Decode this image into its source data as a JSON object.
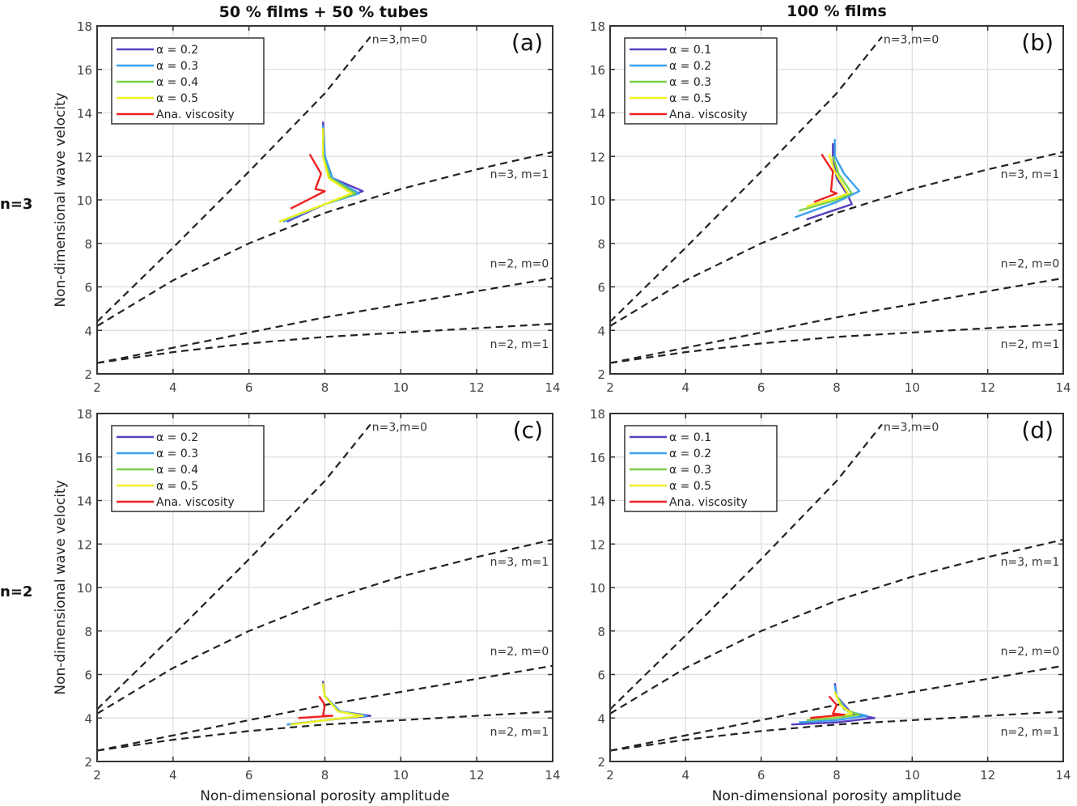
{
  "column_titles": [
    "50 % films + 50 % tubes",
    "100 % films"
  ],
  "row_labels": [
    "n=3",
    "n=2"
  ],
  "chart_data": [
    {
      "type": "line",
      "panel": "(a)",
      "xlabel": "",
      "ylabel": "Non-dimensional wave velocity",
      "xlim": [
        2,
        14
      ],
      "ylim": [
        2,
        18
      ],
      "xticks": [
        2,
        4,
        6,
        8,
        10,
        12,
        14
      ],
      "yticks": [
        2,
        4,
        6,
        8,
        10,
        12,
        14,
        16,
        18
      ],
      "grid": true,
      "legend": {
        "placement": "top-left",
        "entries": [
          {
            "label": "α = 0.2",
            "color": "#5a3fc0"
          },
          {
            "label": "α = 0.3",
            "color": "#3aa0f0"
          },
          {
            "label": "α = 0.4",
            "color": "#7cd04a"
          },
          {
            "label": "α = 0.5",
            "color": "#f0f020"
          },
          {
            "label": "Ana. viscosity",
            "color": "#f02020"
          }
        ]
      },
      "dispersion_curves": [
        {
          "label": "n=3,m=0",
          "x": [
            2,
            4,
            6,
            8,
            9.2
          ],
          "y": [
            4.4,
            7.8,
            11.3,
            14.9,
            17.5
          ]
        },
        {
          "label": "n=3, m=1",
          "x": [
            2,
            4,
            6,
            8,
            10,
            12,
            14
          ],
          "y": [
            4.2,
            6.3,
            8.0,
            9.4,
            10.5,
            11.4,
            12.2
          ]
        },
        {
          "label": "n=2, m=0",
          "x": [
            2,
            4,
            6,
            8,
            10,
            12,
            14
          ],
          "y": [
            2.5,
            3.2,
            3.9,
            4.6,
            5.2,
            5.8,
            6.4
          ]
        },
        {
          "label": "n=2, m=1",
          "x": [
            2,
            4,
            6,
            8,
            10,
            12,
            14
          ],
          "y": [
            2.5,
            3.0,
            3.4,
            3.7,
            3.9,
            4.1,
            4.3
          ]
        }
      ],
      "series": [
        {
          "name": "α = 0.2",
          "color": "#5a3fc0",
          "x": [
            7.0,
            8.0,
            9.0,
            8.2,
            8.0,
            7.95
          ],
          "y": [
            9.0,
            9.8,
            10.4,
            11.0,
            12.0,
            13.6
          ]
        },
        {
          "name": "α = 0.3",
          "color": "#3aa0f0",
          "x": [
            6.9,
            8.0,
            8.9,
            8.2,
            8.0,
            7.95
          ],
          "y": [
            9.0,
            9.8,
            10.3,
            11.0,
            12.0,
            13.4
          ]
        },
        {
          "name": "α = 0.4",
          "color": "#7cd04a",
          "x": [
            6.8,
            8.0,
            8.8,
            8.15,
            7.95,
            7.95
          ],
          "y": [
            9.0,
            9.8,
            10.3,
            11.0,
            12.0,
            13.3
          ]
        },
        {
          "name": "α = 0.5",
          "color": "#f0f020",
          "x": [
            6.8,
            8.0,
            8.7,
            8.1,
            7.95,
            7.95
          ],
          "y": [
            9.0,
            9.8,
            10.3,
            11.0,
            12.0,
            13.3
          ]
        },
        {
          "name": "Ana. viscosity",
          "color": "#f02020",
          "x": [
            7.1,
            8.0,
            7.75,
            7.9,
            7.6
          ],
          "y": [
            9.6,
            10.4,
            10.5,
            11.2,
            12.1
          ]
        }
      ]
    },
    {
      "type": "line",
      "panel": "(b)",
      "xlabel": "",
      "ylabel": "",
      "xlim": [
        2,
        14
      ],
      "ylim": [
        2,
        18
      ],
      "xticks": [
        2,
        4,
        6,
        8,
        10,
        12,
        14
      ],
      "yticks": [
        2,
        4,
        6,
        8,
        10,
        12,
        14,
        16,
        18
      ],
      "grid": true,
      "legend": {
        "placement": "top-left",
        "entries": [
          {
            "label": "α = 0.1",
            "color": "#5a3fc0"
          },
          {
            "label": "α = 0.2",
            "color": "#3aa0f0"
          },
          {
            "label": "α = 0.3",
            "color": "#7cd04a"
          },
          {
            "label": "α = 0.5",
            "color": "#f0f020"
          },
          {
            "label": "Ana. viscosity",
            "color": "#f02020"
          }
        ]
      },
      "dispersion_curves": [
        {
          "label": "n=3,m=0",
          "x": [
            2,
            4,
            6,
            8,
            9.2
          ],
          "y": [
            4.4,
            7.8,
            11.3,
            14.9,
            17.5
          ]
        },
        {
          "label": "n=3, m=1",
          "x": [
            2,
            4,
            6,
            8,
            10,
            12,
            14
          ],
          "y": [
            4.2,
            6.3,
            8.0,
            9.4,
            10.5,
            11.4,
            12.2
          ]
        },
        {
          "label": "n=2, m=0",
          "x": [
            2,
            4,
            6,
            8,
            10,
            12,
            14
          ],
          "y": [
            2.5,
            3.2,
            3.9,
            4.6,
            5.2,
            5.8,
            6.4
          ]
        },
        {
          "label": "n=2, m=1",
          "x": [
            2,
            4,
            6,
            8,
            10,
            12,
            14
          ],
          "y": [
            2.5,
            3.0,
            3.4,
            3.7,
            3.9,
            4.1,
            4.3
          ]
        }
      ],
      "series": [
        {
          "name": "α = 0.1",
          "color": "#5a3fc0",
          "x": [
            7.2,
            8.4,
            8.3,
            8.0,
            7.9,
            7.9
          ],
          "y": [
            9.1,
            9.8,
            10.2,
            11.0,
            12.0,
            12.6
          ]
        },
        {
          "name": "α = 0.2",
          "color": "#3aa0f0",
          "x": [
            6.9,
            8.0,
            8.6,
            8.2,
            7.95,
            7.95
          ],
          "y": [
            9.2,
            9.9,
            10.4,
            11.2,
            12.0,
            12.8
          ]
        },
        {
          "name": "α = 0.3",
          "color": "#7cd04a",
          "x": [
            7.0,
            8.0,
            8.4,
            8.05,
            7.9
          ],
          "y": [
            9.5,
            10.0,
            10.3,
            11.2,
            12.0
          ]
        },
        {
          "name": "α = 0.5",
          "color": "#f0f020",
          "x": [
            7.2,
            8.0,
            8.3,
            7.95,
            7.8
          ],
          "y": [
            9.7,
            10.1,
            10.3,
            11.3,
            12.1
          ]
        },
        {
          "name": "Ana. viscosity",
          "color": "#f02020",
          "x": [
            7.4,
            8.0,
            7.85,
            7.9,
            7.6
          ],
          "y": [
            9.9,
            10.3,
            10.4,
            11.3,
            12.1
          ]
        }
      ]
    },
    {
      "type": "line",
      "panel": "(c)",
      "xlabel": "Non-dimensional porosity amplitude",
      "ylabel": "Non-dimensional wave velocity",
      "xlim": [
        2,
        14
      ],
      "ylim": [
        2,
        18
      ],
      "xticks": [
        2,
        4,
        6,
        8,
        10,
        12,
        14
      ],
      "yticks": [
        2,
        4,
        6,
        8,
        10,
        12,
        14,
        16,
        18
      ],
      "grid": true,
      "legend": {
        "placement": "top-left",
        "entries": [
          {
            "label": "α = 0.2",
            "color": "#5a3fc0"
          },
          {
            "label": "α = 0.3",
            "color": "#3aa0f0"
          },
          {
            "label": "α = 0.4",
            "color": "#7cd04a"
          },
          {
            "label": "α = 0.5",
            "color": "#f0f020"
          },
          {
            "label": "Ana. viscosity",
            "color": "#f02020"
          }
        ]
      },
      "dispersion_curves": [
        {
          "label": "n=3,m=0",
          "x": [
            2,
            4,
            6,
            8,
            9.2
          ],
          "y": [
            4.4,
            7.8,
            11.3,
            14.9,
            17.5
          ]
        },
        {
          "label": "n=3, m=1",
          "x": [
            2,
            4,
            6,
            8,
            10,
            12,
            14
          ],
          "y": [
            4.2,
            6.3,
            8.0,
            9.4,
            10.5,
            11.4,
            12.2
          ]
        },
        {
          "label": "n=2, m=0",
          "x": [
            2,
            4,
            6,
            8,
            10,
            12,
            14
          ],
          "y": [
            2.5,
            3.2,
            3.9,
            4.6,
            5.2,
            5.8,
            6.4
          ]
        },
        {
          "label": "n=2, m=1",
          "x": [
            2,
            4,
            6,
            8,
            10,
            12,
            14
          ],
          "y": [
            2.5,
            3.0,
            3.4,
            3.7,
            3.9,
            4.1,
            4.3
          ]
        }
      ],
      "series": [
        {
          "name": "α = 0.2",
          "color": "#5a3fc0",
          "x": [
            7.0,
            8.0,
            9.2,
            8.4,
            8.0,
            7.95
          ],
          "y": [
            3.7,
            3.9,
            4.1,
            4.3,
            5.0,
            5.7
          ]
        },
        {
          "name": "α = 0.3",
          "color": "#3aa0f0",
          "x": [
            7.0,
            8.0,
            9.1,
            8.4,
            8.0,
            7.95
          ],
          "y": [
            3.7,
            3.9,
            4.1,
            4.3,
            5.0,
            5.6
          ]
        },
        {
          "name": "α = 0.4",
          "color": "#7cd04a",
          "x": [
            7.1,
            8.0,
            9.0,
            8.35,
            8.0,
            7.95
          ],
          "y": [
            3.7,
            3.9,
            4.1,
            4.3,
            5.0,
            5.6
          ]
        },
        {
          "name": "α = 0.5",
          "color": "#f0f020",
          "x": [
            7.1,
            8.0,
            9.0,
            8.35,
            8.0,
            7.95
          ],
          "y": [
            3.7,
            3.9,
            4.1,
            4.3,
            5.0,
            5.6
          ]
        },
        {
          "name": "Ana. viscosity",
          "color": "#f02020",
          "x": [
            7.3,
            8.2,
            7.95,
            8.0,
            7.85
          ],
          "y": [
            4.0,
            4.1,
            4.1,
            4.6,
            5.0
          ]
        }
      ]
    },
    {
      "type": "line",
      "panel": "(d)",
      "xlabel": "Non-dimensional porosity amplitude",
      "ylabel": "",
      "xlim": [
        2,
        14
      ],
      "ylim": [
        2,
        18
      ],
      "xticks": [
        2,
        4,
        6,
        8,
        10,
        12,
        14
      ],
      "yticks": [
        2,
        4,
        6,
        8,
        10,
        12,
        14,
        16,
        18
      ],
      "grid": true,
      "legend": {
        "placement": "top-left",
        "entries": [
          {
            "label": "α = 0.1",
            "color": "#5a3fc0"
          },
          {
            "label": "α = 0.2",
            "color": "#3aa0f0"
          },
          {
            "label": "α = 0.3",
            "color": "#7cd04a"
          },
          {
            "label": "α = 0.5",
            "color": "#f0f020"
          },
          {
            "label": "Ana. viscosity",
            "color": "#f02020"
          }
        ]
      },
      "dispersion_curves": [
        {
          "label": "n=3,m=0",
          "x": [
            2,
            4,
            6,
            8,
            9.2
          ],
          "y": [
            4.4,
            7.8,
            11.3,
            14.9,
            17.5
          ]
        },
        {
          "label": "n=3, m=1",
          "x": [
            2,
            4,
            6,
            8,
            10,
            12,
            14
          ],
          "y": [
            4.2,
            6.3,
            8.0,
            9.4,
            10.5,
            11.4,
            12.2
          ]
        },
        {
          "label": "n=2, m=0",
          "x": [
            2,
            4,
            6,
            8,
            10,
            12,
            14
          ],
          "y": [
            2.5,
            3.2,
            3.9,
            4.6,
            5.2,
            5.8,
            6.4
          ]
        },
        {
          "label": "n=2, m=1",
          "x": [
            2,
            4,
            6,
            8,
            10,
            12,
            14
          ],
          "y": [
            2.5,
            3.0,
            3.4,
            3.7,
            3.9,
            4.1,
            4.3
          ]
        }
      ],
      "series": [
        {
          "name": "α = 0.1",
          "color": "#5a3fc0",
          "x": [
            6.8,
            8.0,
            9.0,
            8.4,
            8.0,
            7.95
          ],
          "y": [
            3.7,
            3.8,
            4.0,
            4.2,
            5.0,
            5.6
          ]
        },
        {
          "name": "α = 0.2",
          "color": "#3aa0f0",
          "x": [
            7.0,
            8.0,
            8.8,
            8.3,
            8.0,
            7.95
          ],
          "y": [
            3.8,
            3.9,
            4.1,
            4.3,
            5.0,
            5.5
          ]
        },
        {
          "name": "α = 0.3",
          "color": "#7cd04a",
          "x": [
            7.2,
            8.0,
            8.6,
            8.2,
            8.0
          ],
          "y": [
            3.9,
            4.0,
            4.15,
            4.4,
            5.0
          ]
        },
        {
          "name": "α = 0.5",
          "color": "#f0f020",
          "x": [
            7.3,
            8.0,
            8.4,
            8.1,
            7.95
          ],
          "y": [
            4.0,
            4.1,
            4.2,
            4.6,
            5.2
          ]
        },
        {
          "name": "Ana. viscosity",
          "color": "#f02020",
          "x": [
            7.3,
            8.2,
            7.9,
            8.0,
            7.8
          ],
          "y": [
            4.0,
            4.15,
            4.2,
            4.6,
            5.0
          ]
        }
      ]
    }
  ]
}
